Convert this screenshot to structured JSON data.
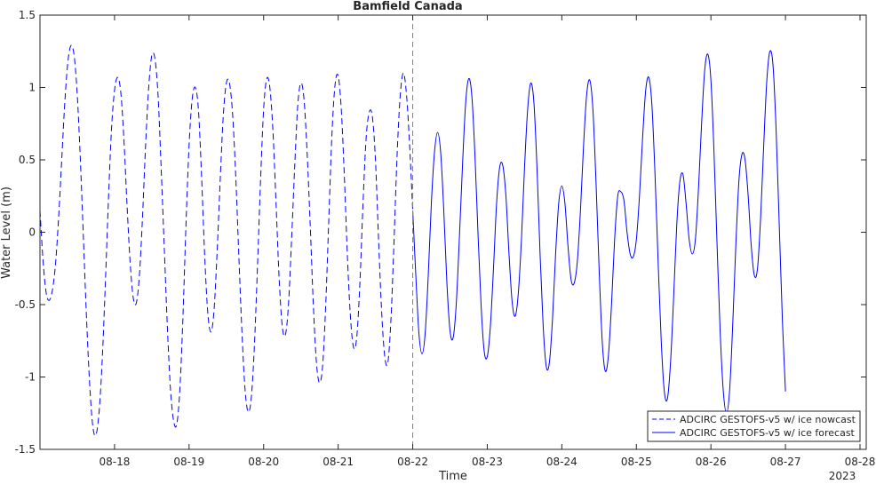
{
  "chart_data": {
    "type": "line",
    "title": "Bamfield Canada",
    "xlabel": "Time",
    "ylabel": "Water Level (m)",
    "ylim": [
      -1.5,
      1.5
    ],
    "yticks": [
      -1.5,
      -1,
      -0.5,
      0,
      0.5,
      1,
      1.5
    ],
    "ytick_labels": [
      "-1.5",
      "-1",
      "-0.5",
      "0",
      "0.5",
      "1",
      "1.5"
    ],
    "x_start": "2023-08-17 00:00",
    "x_end": "2023-08-28 02:00",
    "xticks": [
      "08-18",
      "08-19",
      "08-20",
      "08-21",
      "08-22",
      "08-23",
      "08-24",
      "08-25",
      "08-26",
      "08-27",
      "08-28"
    ],
    "x_year_label": "2023",
    "divider_label": "08-22",
    "legend_position": "bottom-right",
    "grid": false,
    "series": [
      {
        "name": "ADCIRC GESTOFS-v5 w/ ice nowcast",
        "color": "#0000ff",
        "style": "dashed",
        "points": [
          [
            "08-17 00:00",
            0.15
          ],
          [
            "08-17 01:00",
            -0.2
          ],
          [
            "08-17 02:00",
            -0.42
          ],
          [
            "08-17 03:00",
            -0.47
          ],
          [
            "08-17 04:00",
            -0.4
          ],
          [
            "08-17 05:00",
            -0.22
          ],
          [
            "08-17 06:00",
            0.1
          ],
          [
            "08-17 07:00",
            0.5
          ],
          [
            "08-17 08:00",
            0.9
          ],
          [
            "08-17 09:00",
            1.18
          ],
          [
            "08-17 10:00",
            1.29
          ],
          [
            "08-17 11:00",
            1.22
          ],
          [
            "08-17 12:00",
            0.95
          ],
          [
            "08-17 13:00",
            0.5
          ],
          [
            "08-17 14:00",
            -0.05
          ],
          [
            "08-17 15:00",
            -0.6
          ],
          [
            "08-17 16:00",
            -1.05
          ],
          [
            "08-17 17:00",
            -1.34
          ],
          [
            "08-17 18:00",
            -1.4
          ],
          [
            "08-17 19:00",
            -1.25
          ],
          [
            "08-17 20:00",
            -0.9
          ],
          [
            "08-17 21:00",
            -0.38
          ],
          [
            "08-17 22:00",
            0.2
          ],
          [
            "08-17 23:00",
            0.7
          ],
          [
            "08-18 00:00",
            0.98
          ],
          [
            "08-18 01:00",
            1.07
          ],
          [
            "08-18 02:00",
            0.97
          ],
          [
            "08-18 03:00",
            0.65
          ],
          [
            "08-18 04:00",
            0.2
          ],
          [
            "08-18 05:00",
            -0.2
          ],
          [
            "08-18 06:00",
            -0.45
          ],
          [
            "08-18 07:00",
            -0.49
          ],
          [
            "08-18 08:00",
            -0.3
          ],
          [
            "08-18 09:00",
            0.1
          ],
          [
            "08-18 10:00",
            0.6
          ],
          [
            "08-18 11:00",
            1.0
          ],
          [
            "08-18 12:00",
            1.22
          ],
          [
            "08-18 13:00",
            1.2
          ],
          [
            "08-18 14:00",
            0.95
          ],
          [
            "08-18 15:00",
            0.45
          ],
          [
            "08-18 16:00",
            -0.1
          ],
          [
            "08-18 17:00",
            -0.65
          ],
          [
            "08-18 18:00",
            -1.08
          ],
          [
            "08-18 19:00",
            -1.3
          ],
          [
            "08-18 20:00",
            -1.33
          ],
          [
            "08-18 21:00",
            -1.1
          ],
          [
            "08-18 22:00",
            -0.6
          ],
          [
            "08-18 23:00",
            0.05
          ],
          [
            "08-19 00:00",
            0.6
          ],
          [
            "08-19 01:00",
            0.92
          ],
          [
            "08-19 02:00",
            1.0
          ],
          [
            "08-19 03:00",
            0.85
          ],
          [
            "08-19 04:00",
            0.4
          ],
          [
            "08-19 05:00",
            -0.15
          ],
          [
            "08-19 06:00",
            -0.55
          ],
          [
            "08-19 07:00",
            -0.69
          ],
          [
            "08-19 08:00",
            -0.55
          ],
          [
            "08-19 09:00",
            -0.15
          ],
          [
            "08-19 10:00",
            0.35
          ],
          [
            "08-19 11:00",
            0.8
          ],
          [
            "08-19 12:00",
            1.03
          ],
          [
            "08-19 13:00",
            1.03
          ],
          [
            "08-19 14:00",
            0.82
          ],
          [
            "08-19 15:00",
            0.4
          ],
          [
            "08-19 16:00",
            -0.15
          ],
          [
            "08-19 17:00",
            -0.68
          ],
          [
            "08-19 18:00",
            -1.08
          ],
          [
            "08-19 19:00",
            -1.24
          ],
          [
            "08-19 20:00",
            -1.15
          ],
          [
            "08-19 21:00",
            -0.8
          ],
          [
            "08-19 22:00",
            -0.25
          ],
          [
            "08-19 23:00",
            0.35
          ],
          [
            "08-20 00:00",
            0.85
          ],
          [
            "08-20 01:00",
            1.06
          ],
          [
            "08-20 02:00",
            1.0
          ],
          [
            "08-20 03:00",
            0.7
          ],
          [
            "08-20 04:00",
            0.2
          ],
          [
            "08-20 05:00",
            -0.32
          ],
          [
            "08-20 06:00",
            -0.65
          ],
          [
            "08-20 07:00",
            -0.71
          ],
          [
            "08-20 08:00",
            -0.5
          ],
          [
            "08-20 09:00",
            -0.05
          ],
          [
            "08-20 10:00",
            0.45
          ],
          [
            "08-20 11:00",
            0.88
          ],
          [
            "08-20 12:00",
            1.03
          ],
          [
            "08-20 13:00",
            0.92
          ],
          [
            "08-20 14:00",
            0.55
          ],
          [
            "08-20 15:00",
            0.05
          ],
          [
            "08-20 16:00",
            -0.5
          ],
          [
            "08-20 17:00",
            -0.9
          ],
          [
            "08-20 18:00",
            -1.04
          ],
          [
            "08-20 19:00",
            -0.92
          ],
          [
            "08-20 20:00",
            -0.5
          ],
          [
            "08-20 21:00",
            0.1
          ],
          [
            "08-20 22:00",
            0.68
          ],
          [
            "08-20 23:00",
            1.02
          ],
          [
            "08-21 00:00",
            1.08
          ],
          [
            "08-21 01:00",
            0.85
          ],
          [
            "08-21 02:00",
            0.38
          ],
          [
            "08-21 03:00",
            -0.18
          ],
          [
            "08-21 04:00",
            -0.6
          ],
          [
            "08-21 05:00",
            -0.8
          ],
          [
            "08-21 06:00",
            -0.72
          ],
          [
            "08-21 07:00",
            -0.35
          ],
          [
            "08-21 08:00",
            0.2
          ],
          [
            "08-21 09:00",
            0.65
          ],
          [
            "08-21 10:00",
            0.83
          ],
          [
            "08-21 11:00",
            0.8
          ],
          [
            "08-21 12:00",
            0.5
          ],
          [
            "08-21 13:00",
            -0.05
          ],
          [
            "08-21 14:00",
            -0.55
          ],
          [
            "08-21 15:00",
            -0.86
          ],
          [
            "08-21 16:00",
            -0.9
          ],
          [
            "08-21 17:00",
            -0.6
          ],
          [
            "08-21 18:00",
            -0.05
          ],
          [
            "08-21 19:00",
            0.55
          ],
          [
            "08-21 20:00",
            0.95
          ],
          [
            "08-21 21:00",
            1.1
          ],
          [
            "08-21 22:00",
            0.95
          ],
          [
            "08-21 23:00",
            0.6
          ],
          [
            "08-22 00:00",
            0.15
          ]
        ]
      },
      {
        "name": "ADCIRC GESTOFS-v5 w/ ice forecast",
        "color": "#0000ff",
        "style": "solid",
        "points": [
          [
            "08-22 00:00",
            0.15
          ],
          [
            "08-22 01:00",
            -0.3
          ],
          [
            "08-22 02:00",
            -0.7
          ],
          [
            "08-22 03:00",
            -0.84
          ],
          [
            "08-22 04:00",
            -0.7
          ],
          [
            "08-22 05:00",
            -0.3
          ],
          [
            "08-22 06:00",
            0.2
          ],
          [
            "08-22 07:00",
            0.55
          ],
          [
            "08-22 08:00",
            0.69
          ],
          [
            "08-22 09:00",
            0.55
          ],
          [
            "08-22 10:00",
            0.15
          ],
          [
            "08-22 11:00",
            -0.35
          ],
          [
            "08-22 12:00",
            -0.68
          ],
          [
            "08-22 13:00",
            -0.73
          ],
          [
            "08-22 14:00",
            -0.5
          ],
          [
            "08-22 15:00",
            -0.05
          ],
          [
            "08-22 16:00",
            0.45
          ],
          [
            "08-22 17:00",
            0.88
          ],
          [
            "08-22 18:00",
            1.06
          ],
          [
            "08-22 19:00",
            0.95
          ],
          [
            "08-22 20:00",
            0.55
          ],
          [
            "08-22 21:00",
            0.0
          ],
          [
            "08-22 22:00",
            -0.5
          ],
          [
            "08-22 23:00",
            -0.82
          ],
          [
            "08-23 00:00",
            -0.86
          ],
          [
            "08-23 01:00",
            -0.65
          ],
          [
            "08-23 02:00",
            -0.25
          ],
          [
            "08-23 03:00",
            0.2
          ],
          [
            "08-23 04:00",
            0.45
          ],
          [
            "08-23 05:00",
            0.46
          ],
          [
            "08-23 06:00",
            0.25
          ],
          [
            "08-23 07:00",
            -0.15
          ],
          [
            "08-23 08:00",
            -0.48
          ],
          [
            "08-23 09:00",
            -0.58
          ],
          [
            "08-23 10:00",
            -0.42
          ],
          [
            "08-23 11:00",
            -0.05
          ],
          [
            "08-23 12:00",
            0.45
          ],
          [
            "08-23 13:00",
            0.85
          ],
          [
            "08-23 14:00",
            1.03
          ],
          [
            "08-23 15:00",
            0.9
          ],
          [
            "08-23 16:00",
            0.45
          ],
          [
            "08-23 17:00",
            -0.15
          ],
          [
            "08-23 18:00",
            -0.65
          ],
          [
            "08-23 19:00",
            -0.93
          ],
          [
            "08-23 20:00",
            -0.9
          ],
          [
            "08-23 21:00",
            -0.6
          ],
          [
            "08-23 22:00",
            -0.15
          ],
          [
            "08-23 23:00",
            0.2
          ],
          [
            "08-24 00:00",
            0.32
          ],
          [
            "08-24 01:00",
            0.2
          ],
          [
            "08-24 02:00",
            -0.1
          ],
          [
            "08-24 03:00",
            -0.33
          ],
          [
            "08-24 04:00",
            -0.35
          ],
          [
            "08-24 05:00",
            -0.2
          ],
          [
            "08-24 06:00",
            0.15
          ],
          [
            "08-24 07:00",
            0.6
          ],
          [
            "08-24 08:00",
            0.95
          ],
          [
            "08-24 09:00",
            1.05
          ],
          [
            "08-24 10:00",
            0.85
          ],
          [
            "08-24 11:00",
            0.35
          ],
          [
            "08-24 12:00",
            -0.25
          ],
          [
            "08-24 13:00",
            -0.75
          ],
          [
            "08-24 14:00",
            -0.96
          ],
          [
            "08-24 15:00",
            -0.85
          ],
          [
            "08-24 16:00",
            -0.5
          ],
          [
            "08-24 17:00",
            -0.05
          ],
          [
            "08-24 18:00",
            0.25
          ],
          [
            "08-24 19:00",
            0.28
          ],
          [
            "08-24 20:00",
            0.22
          ],
          [
            "08-24 21:00",
            0.0
          ],
          [
            "08-24 22:00",
            -0.15
          ],
          [
            "08-24 23:00",
            -0.17
          ],
          [
            "08-25 00:00",
            -0.05
          ],
          [
            "08-25 01:00",
            0.25
          ],
          [
            "08-25 02:00",
            0.65
          ],
          [
            "08-25 03:00",
            0.98
          ],
          [
            "08-25 04:00",
            1.07
          ],
          [
            "08-25 05:00",
            0.88
          ],
          [
            "08-25 06:00",
            0.4
          ],
          [
            "08-25 07:00",
            -0.2
          ],
          [
            "08-25 08:00",
            -0.75
          ],
          [
            "08-25 09:00",
            -1.1
          ],
          [
            "08-25 10:00",
            -1.15
          ],
          [
            "08-25 11:00",
            -0.9
          ],
          [
            "08-25 12:00",
            -0.45
          ],
          [
            "08-25 13:00",
            0.05
          ],
          [
            "08-25 14:00",
            0.35
          ],
          [
            "08-25 15:00",
            0.4
          ],
          [
            "08-25 16:00",
            0.2
          ],
          [
            "08-25 17:00",
            -0.05
          ],
          [
            "08-25 18:00",
            -0.15
          ],
          [
            "08-25 19:00",
            -0.05
          ],
          [
            "08-25 20:00",
            0.3
          ],
          [
            "08-25 21:00",
            0.75
          ],
          [
            "08-25 22:00",
            1.12
          ],
          [
            "08-25 23:00",
            1.23
          ],
          [
            "08-26 00:00",
            1.05
          ],
          [
            "08-26 01:00",
            0.55
          ],
          [
            "08-26 02:00",
            -0.1
          ],
          [
            "08-26 03:00",
            -0.7
          ],
          [
            "08-26 04:00",
            -1.1
          ],
          [
            "08-26 05:00",
            -1.25
          ],
          [
            "08-26 06:00",
            -1.1
          ],
          [
            "08-26 07:00",
            -0.65
          ],
          [
            "08-26 08:00",
            -0.1
          ],
          [
            "08-26 09:00",
            0.35
          ],
          [
            "08-26 10:00",
            0.54
          ],
          [
            "08-26 11:00",
            0.5
          ],
          [
            "08-26 12:00",
            0.25
          ],
          [
            "08-26 13:00",
            -0.1
          ],
          [
            "08-26 14:00",
            -0.3
          ],
          [
            "08-26 15:00",
            -0.25
          ],
          [
            "08-26 16:00",
            0.1
          ],
          [
            "08-26 17:00",
            0.6
          ],
          [
            "08-26 18:00",
            1.05
          ],
          [
            "08-26 19:00",
            1.25
          ],
          [
            "08-26 20:00",
            1.15
          ],
          [
            "08-26 21:00",
            0.7
          ],
          [
            "08-26 22:00",
            0.05
          ],
          [
            "08-26 23:00",
            -0.6
          ],
          [
            "08-27 00:00",
            -1.1
          ]
        ]
      }
    ]
  },
  "legend": {
    "items": [
      {
        "label": "ADCIRC GESTOFS-v5 w/ ice nowcast",
        "style": "dashed"
      },
      {
        "label": "ADCIRC GESTOFS-v5 w/ ice forecast",
        "style": "solid"
      }
    ]
  }
}
